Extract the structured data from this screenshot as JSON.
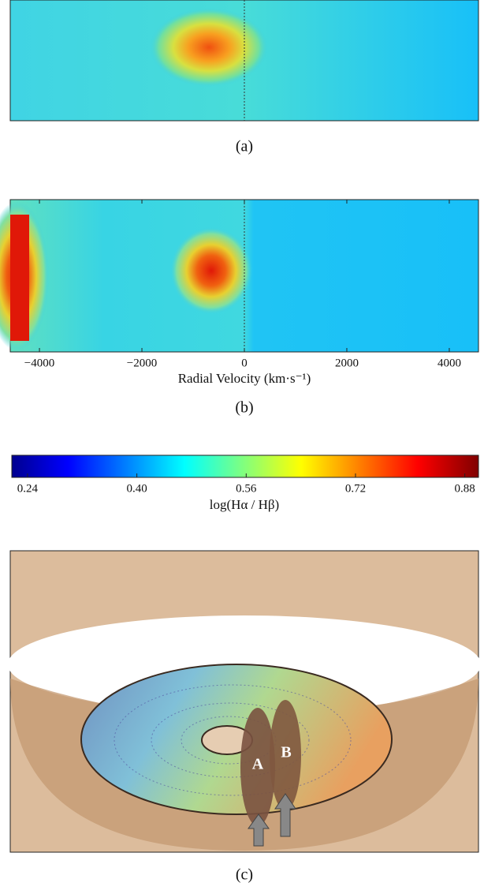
{
  "panel_a": {
    "caption": "(a)"
  },
  "panel_b": {
    "caption": "(b)",
    "x_label": "Radial Velocity (km·s⁻¹)",
    "xlim": [
      -4570,
      4570
    ],
    "xticks": [
      {
        "value": -4000,
        "label": "−4000"
      },
      {
        "value": -2000,
        "label": "−2000"
      },
      0,
      2000,
      4000
    ]
  },
  "colorbar": {
    "label": "log(Hα / Hβ)",
    "clim": [
      0.217,
      0.9
    ],
    "ticks": [
      0.24,
      {
        "value": 0.4,
        "label": "0.40"
      },
      0.56,
      0.72,
      0.88
    ]
  },
  "panel_c": {
    "caption": "(c)",
    "labels": [
      "A",
      "B"
    ]
  }
}
